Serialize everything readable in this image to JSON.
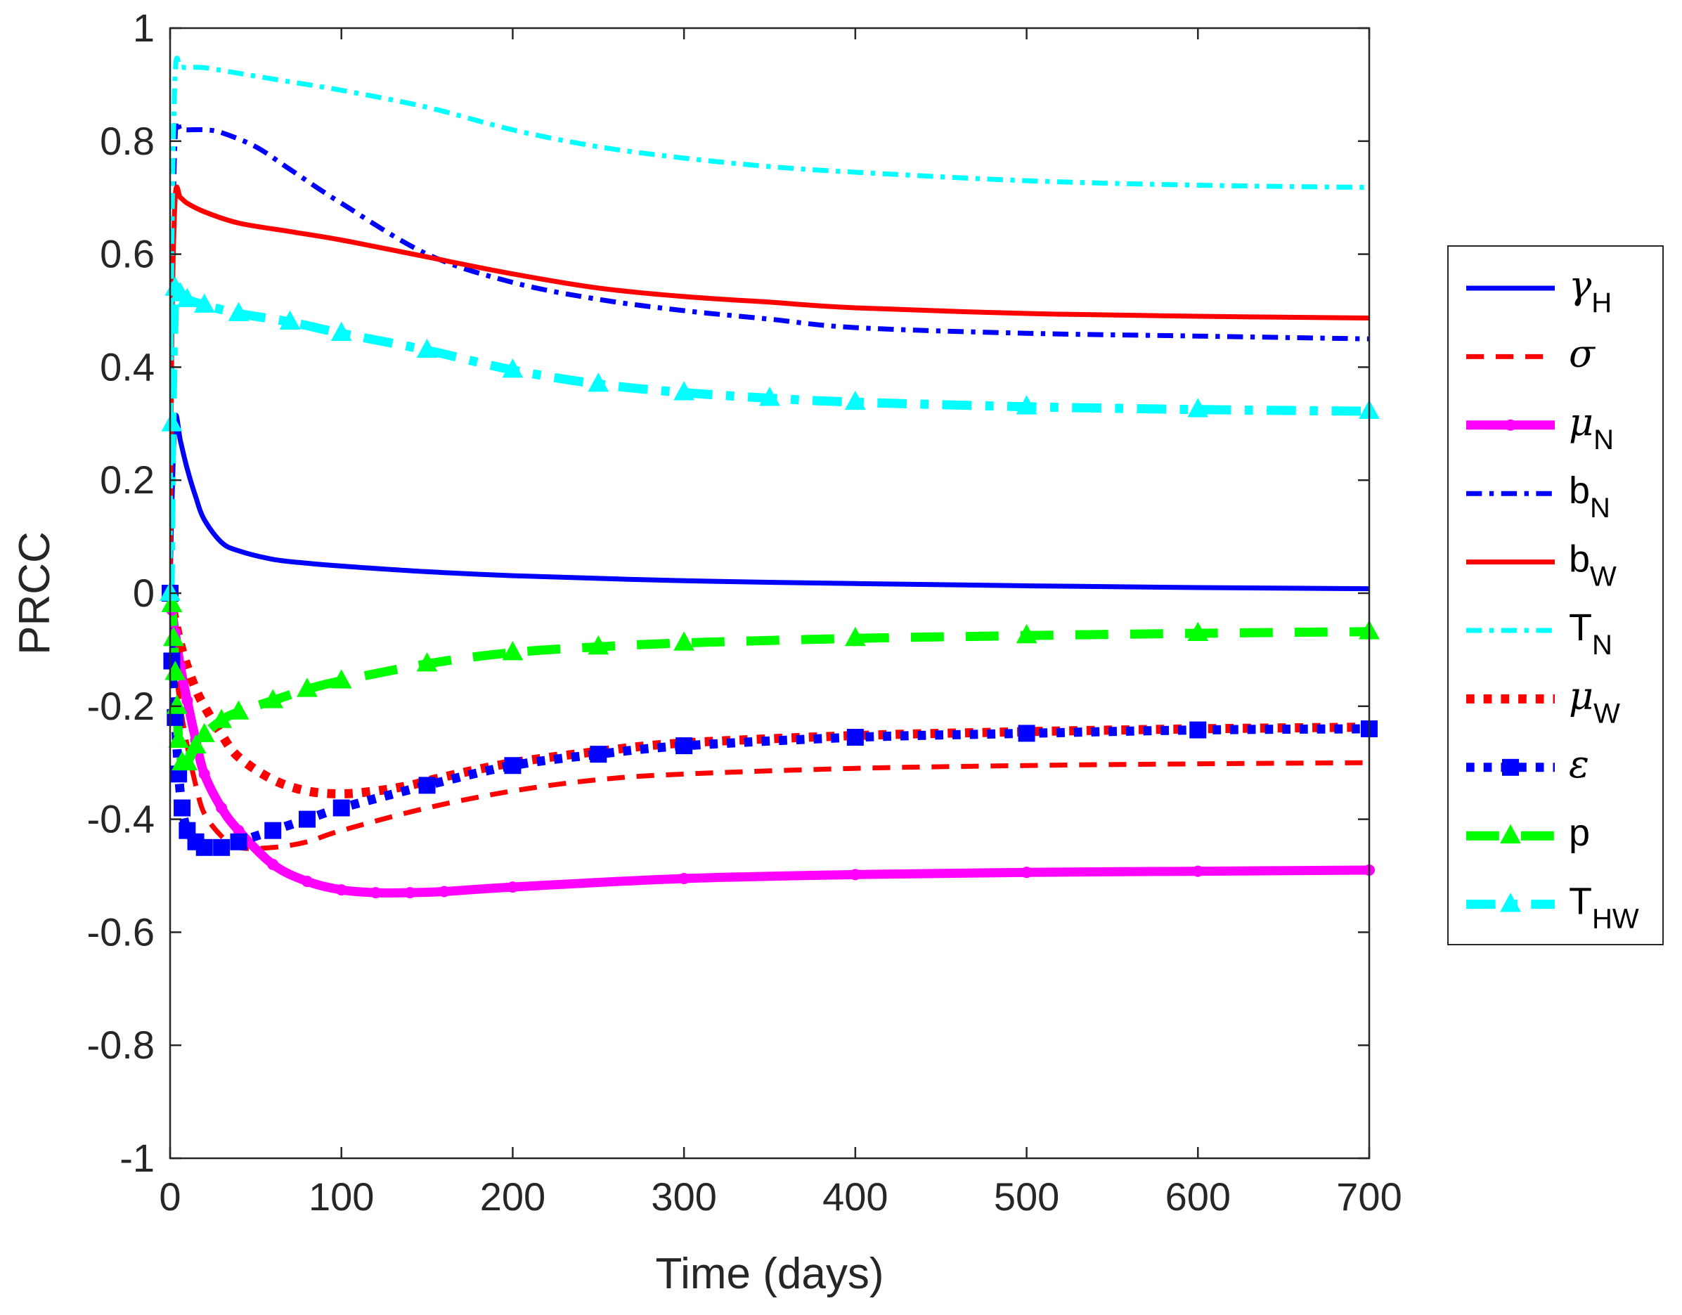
{
  "chart_data": {
    "type": "line",
    "title": "",
    "xlabel": "Time (days)",
    "ylabel": "PRCC",
    "xlim": [
      0,
      700
    ],
    "ylim": [
      -1,
      1
    ],
    "xticks": [
      0,
      100,
      200,
      300,
      400,
      500,
      600,
      700
    ],
    "yticks": [
      -1,
      -0.8,
      -0.6,
      -0.4,
      -0.2,
      0,
      0.2,
      0.4,
      0.6,
      0.8,
      1
    ],
    "xtick_labels": [
      "0",
      "100",
      "200",
      "300",
      "400",
      "500",
      "600",
      "700"
    ],
    "ytick_labels": [
      "-1",
      "-0.8",
      "-0.6",
      "-0.4",
      "-0.2",
      "0",
      "0.2",
      "0.4",
      "0.6",
      "0.8",
      "1"
    ],
    "grid": false,
    "legend_position": "outside-right",
    "series": [
      {
        "name": "γ_H",
        "sym": "γ",
        "sub": "H",
        "greek": true,
        "color": "#0000ff",
        "style": "solid",
        "marker": "none",
        "weight": "normal",
        "x": [
          0,
          1,
          3,
          6,
          10,
          15,
          20,
          30,
          40,
          60,
          80,
          100,
          150,
          200,
          300,
          400,
          500,
          600,
          700
        ],
        "y": [
          0.0,
          0.15,
          0.31,
          0.27,
          0.22,
          0.17,
          0.13,
          0.09,
          0.075,
          0.06,
          0.053,
          0.048,
          0.038,
          0.031,
          0.022,
          0.017,
          0.013,
          0.01,
          0.008
        ]
      },
      {
        "name": "σ",
        "sym": "σ",
        "sub": "",
        "greek": true,
        "color": "#ff0000",
        "style": "dashed",
        "marker": "none",
        "weight": "normal",
        "x": [
          0,
          1,
          3,
          6,
          10,
          15,
          20,
          30,
          40,
          60,
          80,
          100,
          150,
          200,
          250,
          300,
          400,
          500,
          600,
          700
        ],
        "y": [
          0.0,
          -0.05,
          -0.12,
          -0.2,
          -0.27,
          -0.34,
          -0.39,
          -0.43,
          -0.45,
          -0.45,
          -0.44,
          -0.42,
          -0.38,
          -0.35,
          -0.33,
          -0.32,
          -0.31,
          -0.305,
          -0.302,
          -0.3
        ]
      },
      {
        "name": "μ_N",
        "sym": "μ",
        "sub": "N",
        "greek": true,
        "color": "#ff00ff",
        "style": "solid",
        "marker": "dot",
        "weight": "bold",
        "x": [
          0,
          1,
          3,
          6,
          10,
          15,
          20,
          30,
          40,
          60,
          80,
          100,
          120,
          140,
          160,
          200,
          300,
          400,
          500,
          600,
          700
        ],
        "y": [
          0.0,
          -0.03,
          -0.07,
          -0.13,
          -0.19,
          -0.26,
          -0.32,
          -0.38,
          -0.42,
          -0.48,
          -0.51,
          -0.525,
          -0.53,
          -0.53,
          -0.528,
          -0.52,
          -0.505,
          -0.498,
          -0.494,
          -0.492,
          -0.49
        ]
      },
      {
        "name": "b_N",
        "sym": "b",
        "sub": "N",
        "greek": false,
        "color": "#0000ff",
        "style": "dashdot",
        "marker": "none",
        "weight": "normal",
        "x": [
          0,
          1,
          3,
          6,
          10,
          20,
          30,
          50,
          70,
          100,
          150,
          200,
          250,
          300,
          350,
          400,
          500,
          600,
          700
        ],
        "y": [
          0.0,
          0.5,
          0.81,
          0.82,
          0.82,
          0.82,
          0.815,
          0.79,
          0.75,
          0.69,
          0.6,
          0.55,
          0.52,
          0.5,
          0.485,
          0.47,
          0.46,
          0.455,
          0.45
        ]
      },
      {
        "name": "b_W",
        "sym": "b",
        "sub": "W",
        "greek": false,
        "color": "#ff0000",
        "style": "solid",
        "marker": "none",
        "weight": "normal",
        "x": [
          0,
          1,
          3,
          6,
          10,
          20,
          40,
          70,
          100,
          150,
          200,
          250,
          300,
          350,
          400,
          500,
          600,
          700
        ],
        "y": [
          0.0,
          0.45,
          0.7,
          0.7,
          0.69,
          0.675,
          0.655,
          0.64,
          0.625,
          0.595,
          0.565,
          0.54,
          0.525,
          0.515,
          0.505,
          0.495,
          0.49,
          0.487
        ]
      },
      {
        "name": "T_N",
        "sym": "T",
        "sub": "N",
        "greek": false,
        "color": "#00ffff",
        "style": "dashdot",
        "marker": "none",
        "weight": "normal",
        "x": [
          0,
          1,
          3,
          6,
          10,
          20,
          40,
          70,
          100,
          150,
          200,
          250,
          300,
          350,
          400,
          500,
          600,
          700
        ],
        "y": [
          0.0,
          0.6,
          0.92,
          0.93,
          0.93,
          0.93,
          0.92,
          0.905,
          0.89,
          0.86,
          0.82,
          0.79,
          0.77,
          0.755,
          0.745,
          0.73,
          0.722,
          0.718
        ]
      },
      {
        "name": "μ_W",
        "sym": "μ",
        "sub": "W",
        "greek": true,
        "color": "#ff0000",
        "style": "dotted",
        "marker": "none",
        "weight": "bold",
        "x": [
          0,
          1,
          3,
          6,
          10,
          15,
          20,
          30,
          40,
          60,
          80,
          100,
          120,
          140,
          160,
          200,
          250,
          300,
          400,
          500,
          600,
          700
        ],
        "y": [
          0.0,
          -0.02,
          -0.05,
          -0.09,
          -0.13,
          -0.17,
          -0.2,
          -0.25,
          -0.29,
          -0.33,
          -0.35,
          -0.355,
          -0.35,
          -0.34,
          -0.325,
          -0.3,
          -0.28,
          -0.265,
          -0.252,
          -0.245,
          -0.24,
          -0.237
        ]
      },
      {
        "name": "ε",
        "sym": "ε",
        "sub": "",
        "greek": true,
        "color": "#0000ff",
        "style": "dotted",
        "marker": "square",
        "weight": "bold",
        "x": [
          0,
          1,
          3,
          5,
          7,
          10,
          15,
          20,
          30,
          40,
          60,
          80,
          100,
          150,
          200,
          250,
          300,
          400,
          500,
          600,
          700
        ],
        "y": [
          0.0,
          -0.12,
          -0.22,
          -0.32,
          -0.38,
          -0.42,
          -0.44,
          -0.45,
          -0.45,
          -0.44,
          -0.42,
          -0.4,
          -0.38,
          -0.34,
          -0.305,
          -0.285,
          -0.27,
          -0.255,
          -0.248,
          -0.242,
          -0.24
        ]
      },
      {
        "name": "p",
        "sym": "p",
        "sub": "",
        "greek": false,
        "color": "#00ff00",
        "style": "dashed",
        "marker": "triangle",
        "weight": "bold",
        "x": [
          0,
          1,
          2,
          3,
          4,
          5,
          7,
          10,
          15,
          20,
          30,
          40,
          60,
          80,
          100,
          150,
          200,
          250,
          300,
          400,
          500,
          600,
          700
        ],
        "y": [
          0.0,
          -0.02,
          -0.08,
          -0.14,
          -0.2,
          -0.26,
          -0.3,
          -0.3,
          -0.27,
          -0.25,
          -0.225,
          -0.21,
          -0.19,
          -0.17,
          -0.155,
          -0.125,
          -0.105,
          -0.095,
          -0.088,
          -0.08,
          -0.075,
          -0.071,
          -0.068
        ]
      },
      {
        "name": "T_HW",
        "sym": "T",
        "sub": "HW",
        "greek": false,
        "color": "#00ffff",
        "style": "dashdot",
        "marker": "triangle",
        "weight": "bold",
        "x": [
          0,
          1,
          3,
          6,
          10,
          20,
          40,
          70,
          100,
          150,
          200,
          250,
          300,
          350,
          400,
          500,
          600,
          700
        ],
        "y": [
          0.0,
          0.3,
          0.54,
          0.53,
          0.52,
          0.51,
          0.495,
          0.48,
          0.46,
          0.43,
          0.395,
          0.37,
          0.355,
          0.345,
          0.338,
          0.33,
          0.325,
          0.322
        ]
      }
    ]
  }
}
